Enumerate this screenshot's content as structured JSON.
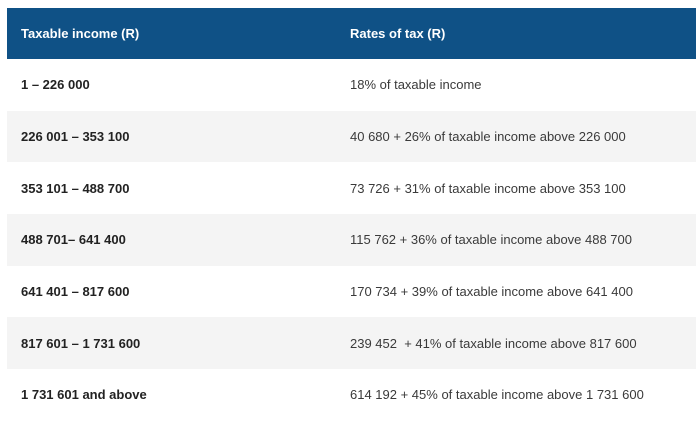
{
  "table": {
    "headers": {
      "income": "Taxable income (R)",
      "rates": "Rates of tax (R)"
    },
    "rows": [
      {
        "income": "1 – 226 000",
        "rate": "18% of taxable income"
      },
      {
        "income": "226 001 – 353 100",
        "rate": "40 680 + 26% of taxable income above 226 000"
      },
      {
        "income": "353 101 – 488 700",
        "rate": "73 726 + 31% of taxable income above 353 100"
      },
      {
        "income": "488 701– 641 400",
        "rate": "115 762 + 36% of taxable income above 488 700"
      },
      {
        "income": "641 401 – 817 600",
        "rate": "170 734 + 39% of taxable income above 641 400"
      },
      {
        "income": "817 601 – 1 731 600",
        "rate": "239 452  + 41% of taxable income above 817 600"
      },
      {
        "income": "1 731 601 and above",
        "rate": "614 192 + 45% of taxable income above 1 731 600"
      }
    ],
    "colors": {
      "header_bg": "#0f5186",
      "header_text": "#ffffff",
      "stripe_bg": "#f4f4f4"
    }
  }
}
